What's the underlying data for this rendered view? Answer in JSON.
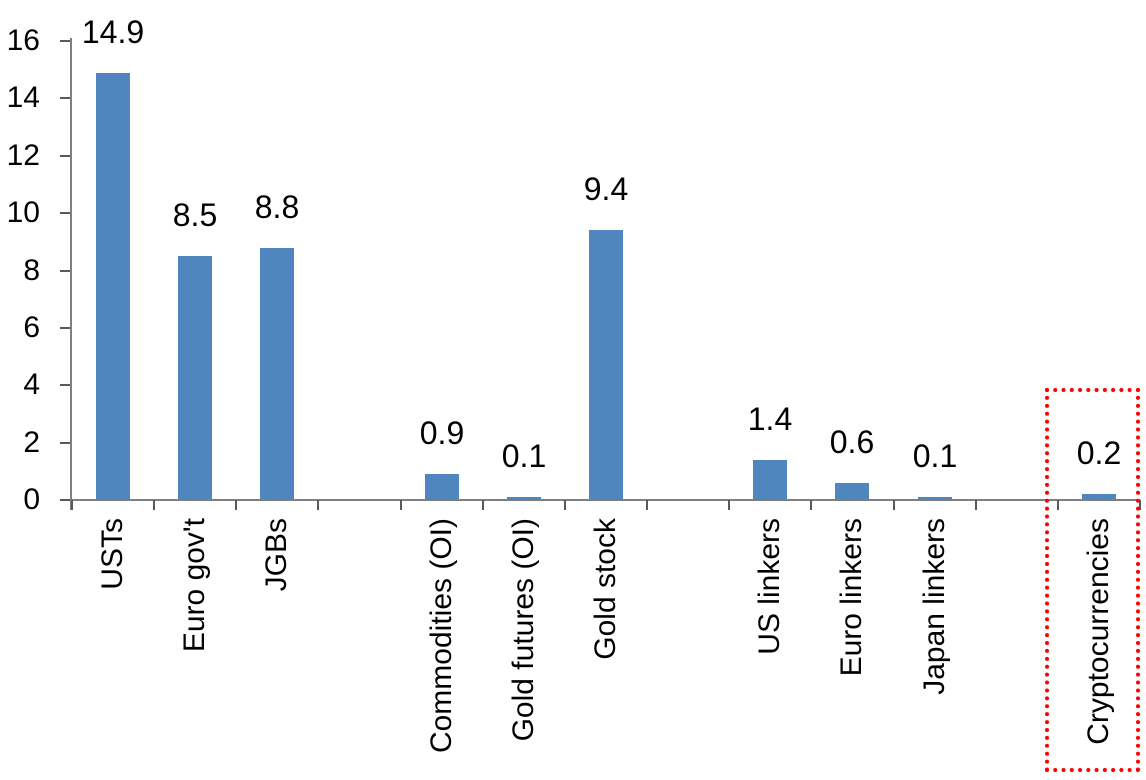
{
  "chart_data": {
    "type": "bar",
    "title": "",
    "xlabel": "",
    "ylabel": "",
    "ylim": [
      0,
      16
    ],
    "yticks": [
      0,
      2,
      4,
      6,
      8,
      10,
      12,
      14,
      16
    ],
    "grid": false,
    "legend": false,
    "data_labels": true,
    "bar_color": "#4e86bd",
    "axis_line_color": "#7f7f7f",
    "tick_color": "#595959",
    "label_color": "#000000",
    "total_slots": 13,
    "categories": [
      {
        "label": "USTs",
        "value": 14.9,
        "value_label": "14.9",
        "slot": 0
      },
      {
        "label": "Euro gov't",
        "value": 8.5,
        "value_label": "8.5",
        "slot": 1
      },
      {
        "label": "JGBs",
        "value": 8.8,
        "value_label": "8.8",
        "slot": 2
      },
      {
        "label": "Commodities (OI)",
        "value": 0.9,
        "value_label": "0.9",
        "slot": 4
      },
      {
        "label": "Gold futures (OI)",
        "value": 0.1,
        "value_label": "0.1",
        "slot": 5
      },
      {
        "label": "Gold stock",
        "value": 9.4,
        "value_label": "9.4",
        "slot": 6
      },
      {
        "label": "US linkers",
        "value": 1.4,
        "value_label": "1.4",
        "slot": 8
      },
      {
        "label": "Euro linkers",
        "value": 0.6,
        "value_label": "0.6",
        "slot": 9
      },
      {
        "label": "Japan linkers",
        "value": 0.1,
        "value_label": "0.1",
        "slot": 10
      },
      {
        "label": "Cryptocurrencies",
        "value": 0.2,
        "value_label": "0.2",
        "slot": 12
      }
    ],
    "highlight": {
      "category": "Cryptocurrencies",
      "style": "red-dotted-box",
      "color": "#ff0000"
    }
  }
}
